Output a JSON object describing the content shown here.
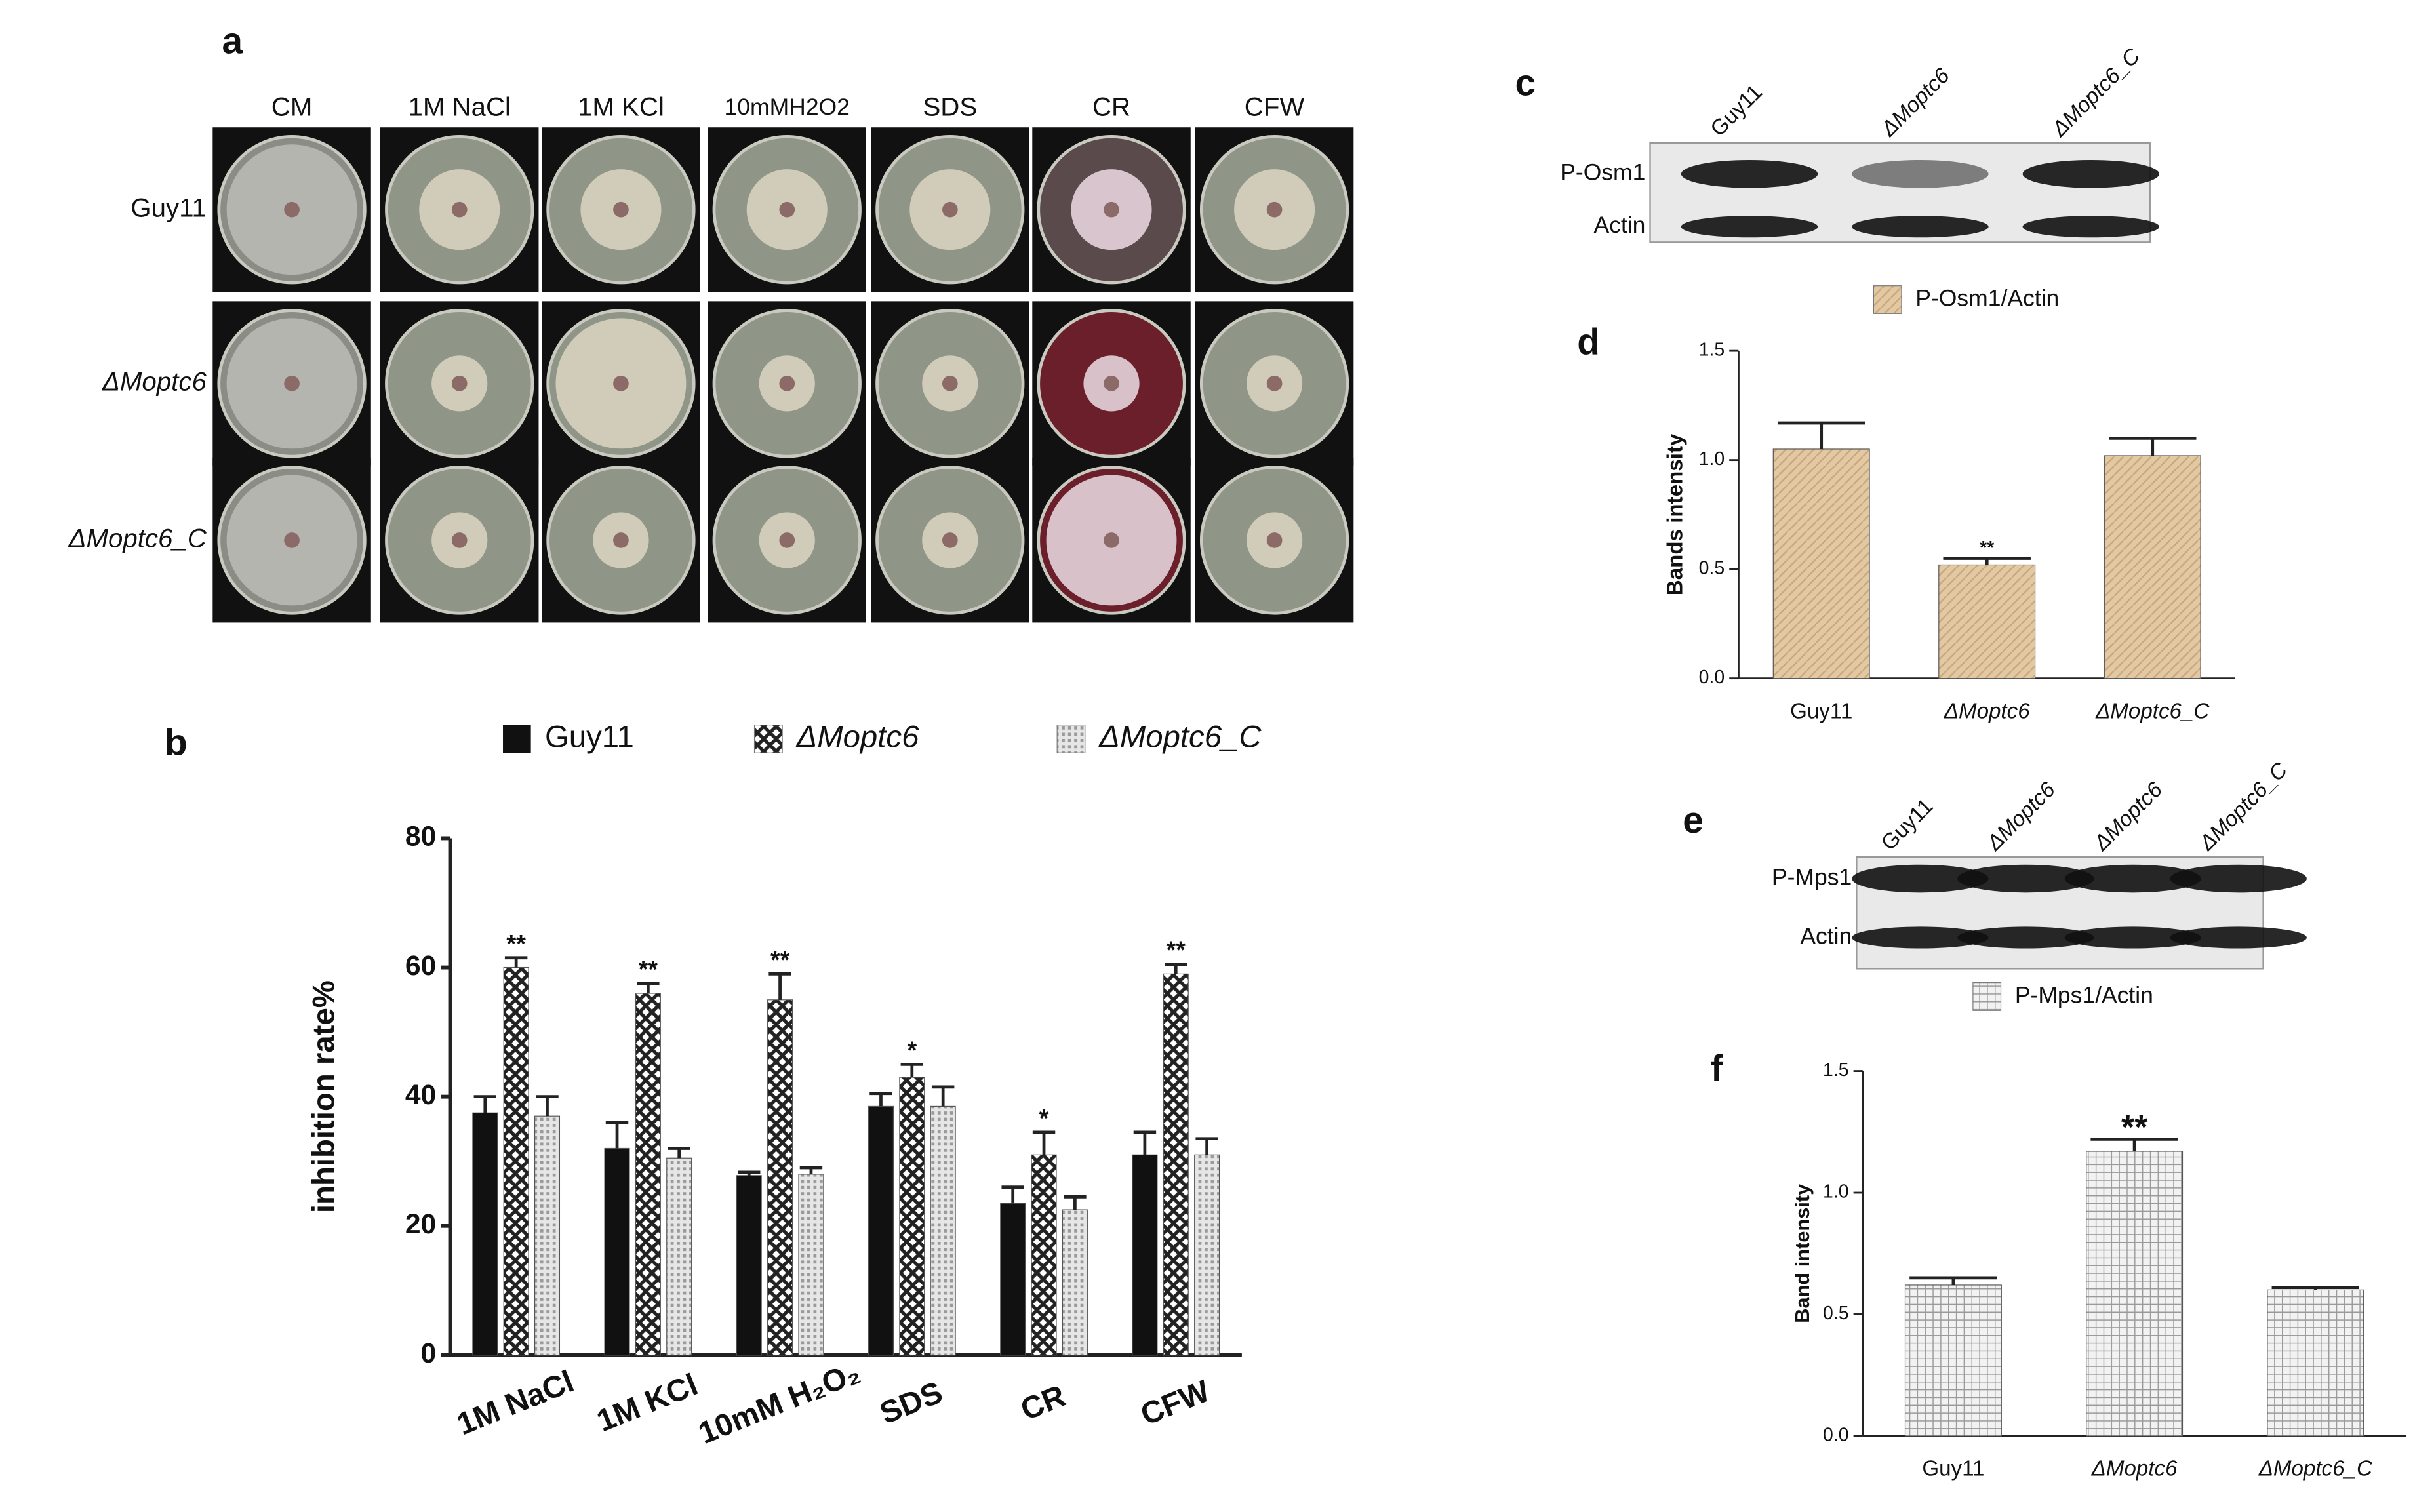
{
  "panel_labels": [
    "a",
    "b",
    "c",
    "d",
    "e",
    "f"
  ],
  "plate_photo": {
    "columns": [
      "CM",
      "1M NaCl",
      "1M KCl",
      "10mMH2O2",
      "SDS",
      "CR",
      "CFW"
    ],
    "rows": [
      "Guy11",
      "ΔMoptc6",
      "ΔMoptc6_C"
    ]
  },
  "blot_c": {
    "lanes": [
      "Guy11",
      "ΔMoptc6",
      "ΔMoptc6_C"
    ],
    "bands": [
      "P-Osm1",
      "Actin"
    ]
  },
  "blot_e": {
    "lanes": [
      "Guy11",
      "ΔMoptc6",
      "ΔMoptc6",
      "ΔMoptc6_C"
    ],
    "bands": [
      "P-Mps1",
      "Actin"
    ]
  },
  "chart_data": [
    {
      "type": "bar",
      "y_label": "inhibition rate%",
      "categories": [
        "1M NaCl",
        "1M KCl",
        "10mM H₂O₂",
        "SDS",
        "CR",
        "CFW"
      ],
      "series": [
        {
          "name": "Guy11",
          "color": "#111111",
          "values": [
            37.5,
            32,
            27.8,
            38.5,
            23.5,
            31
          ],
          "errors": [
            2.5,
            4,
            0.5,
            2,
            2.5,
            3.5
          ]
        },
        {
          "name": "ΔMoptc6",
          "color": "#333333",
          "values": [
            60,
            56,
            55,
            43,
            31,
            59
          ],
          "errors": [
            1.5,
            1.5,
            4,
            2,
            3.5,
            1.5
          ],
          "value_annotations": [
            "**",
            "**",
            "**",
            "*",
            "*",
            "**"
          ]
        },
        {
          "name": "ΔMoptc6_C",
          "color": "#c8c8c8",
          "values": [
            37,
            30.5,
            28,
            38.5,
            22.5,
            31
          ],
          "errors": [
            3,
            1.5,
            1,
            3,
            2,
            2.5
          ]
        }
      ],
      "ylim": [
        0,
        80
      ],
      "yticks": [
        0,
        20,
        40,
        60,
        80
      ]
    },
    {
      "type": "bar",
      "y_label": "Bands intensity",
      "categories": [
        "Guy11",
        "ΔMoptc6",
        "ΔMoptc6_C"
      ],
      "series": [
        {
          "name": "P-Osm1/Actin",
          "color": "#dcbf95",
          "values": [
            1.05,
            0.52,
            1.02
          ],
          "errors": [
            0.12,
            0.03,
            0.08
          ],
          "value_annotations": [
            null,
            "**",
            null
          ]
        }
      ],
      "ylim": [
        0,
        1.5
      ],
      "yticks": [
        {
          "value": 0,
          "label": "0.0"
        },
        {
          "value": 0.5,
          "label": "0.5"
        },
        {
          "value": 1,
          "label": "1.0"
        },
        {
          "value": 1.5,
          "label": "1.5"
        }
      ]
    },
    {
      "type": "bar",
      "y_label": "Band intensity",
      "categories": [
        "Guy11",
        "ΔMoptc6",
        "ΔMoptc6_C"
      ],
      "series": [
        {
          "name": "P-Mps1/Actin",
          "color": "#d4d4d4",
          "values": [
            0.62,
            1.17,
            0.6
          ],
          "errors": [
            0.03,
            0.05,
            0.01
          ],
          "value_annotations": [
            null,
            "**",
            null
          ]
        }
      ],
      "ylim": [
        0,
        1.5
      ],
      "yticks": [
        {
          "value": 0,
          "label": "0.0"
        },
        {
          "value": 0.5,
          "label": "0.5"
        },
        {
          "value": 1,
          "label": "1.0"
        },
        {
          "value": 1.5,
          "label": "1.5"
        }
      ]
    }
  ]
}
